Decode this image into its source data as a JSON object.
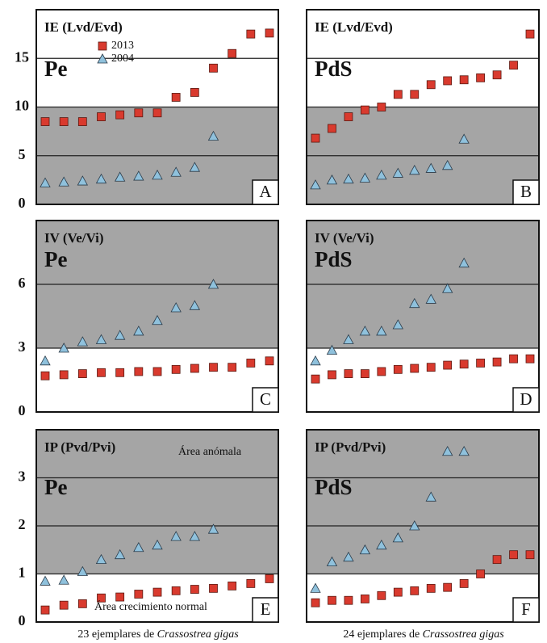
{
  "chart_data": [
    {
      "type": "scatter",
      "title": "IE (Lvd/Evd)",
      "subtitle": "Pe",
      "panel_label": "A",
      "ylim": [
        0,
        20
      ],
      "yticks": [
        0,
        5,
        10,
        15
      ],
      "tick_labels": true,
      "shaded_range": [
        0,
        10
      ],
      "series": [
        {
          "name": "2013",
          "marker": "square",
          "color": "#d93a2e",
          "values": [
            8.5,
            8.5,
            8.5,
            9,
            9.2,
            9.4,
            9.4,
            11,
            11.5,
            14,
            15.5,
            17.5,
            17.6
          ]
        },
        {
          "name": "2004",
          "marker": "triangle",
          "color": "#8fc1dc",
          "values": [
            2.2,
            2.3,
            2.4,
            2.6,
            2.8,
            2.9,
            3.0,
            3.3,
            3.8,
            7
          ]
        }
      ]
    },
    {
      "type": "scatter",
      "title": "IE (Lvd/Evd)",
      "subtitle": "PdS",
      "panel_label": "B",
      "ylim": [
        0,
        20
      ],
      "yticks": [
        0,
        5,
        10,
        15
      ],
      "tick_labels": false,
      "shaded_range": [
        0,
        10
      ],
      "series": [
        {
          "marker": "square",
          "color": "#d93a2e",
          "values": [
            6.8,
            7.8,
            9,
            9.7,
            10,
            11.3,
            11.3,
            12.3,
            12.7,
            12.8,
            13,
            13.3,
            14.3,
            17.5
          ]
        },
        {
          "marker": "triangle",
          "color": "#8fc1dc",
          "values": [
            2,
            2.5,
            2.6,
            2.7,
            3,
            3.2,
            3.5,
            3.7,
            4,
            6.7
          ]
        }
      ]
    },
    {
      "type": "scatter",
      "title": "IV (Ve/Vi)",
      "subtitle": "Pe",
      "panel_label": "C",
      "ylim": [
        0,
        9
      ],
      "yticks": [
        0,
        3,
        6
      ],
      "tick_labels": true,
      "shaded_range": [
        3,
        9
      ],
      "series": [
        {
          "marker": "square",
          "color": "#d93a2e",
          "values": [
            1.7,
            1.75,
            1.8,
            1.85,
            1.85,
            1.9,
            1.9,
            2.0,
            2.05,
            2.1,
            2.1,
            2.3,
            2.4
          ]
        },
        {
          "marker": "triangle",
          "color": "#8fc1dc",
          "values": [
            2.4,
            3,
            3.3,
            3.4,
            3.6,
            3.8,
            4.3,
            4.9,
            5,
            6
          ]
        }
      ]
    },
    {
      "type": "scatter",
      "title": "IV (Ve/Vi)",
      "subtitle": "PdS",
      "panel_label": "D",
      "ylim": [
        0,
        9
      ],
      "yticks": [
        0,
        3,
        6
      ],
      "tick_labels": false,
      "shaded_range": [
        3,
        9
      ],
      "series": [
        {
          "marker": "square",
          "color": "#d93a2e",
          "values": [
            1.55,
            1.75,
            1.8,
            1.8,
            1.9,
            2.0,
            2.05,
            2.1,
            2.2,
            2.25,
            2.3,
            2.35,
            2.5,
            2.5
          ]
        },
        {
          "marker": "triangle",
          "color": "#8fc1dc",
          "values": [
            2.4,
            2.9,
            3.4,
            3.8,
            3.8,
            4.1,
            5.1,
            5.3,
            5.8,
            7
          ]
        }
      ]
    },
    {
      "type": "scatter",
      "title": "IP (Pvd/Pvi)",
      "subtitle": "Pe",
      "panel_label": "E",
      "ylim": [
        0,
        4
      ],
      "yticks": [
        0,
        1,
        2,
        3
      ],
      "tick_labels": true,
      "shaded_range": [
        1,
        4
      ],
      "annotations": [
        "Área anómala",
        "Área crecimiento normal"
      ],
      "series": [
        {
          "marker": "square",
          "color": "#d93a2e",
          "values": [
            0.25,
            0.35,
            0.38,
            0.5,
            0.52,
            0.58,
            0.62,
            0.65,
            0.68,
            0.7,
            0.75,
            0.8,
            0.9
          ]
        },
        {
          "marker": "triangle",
          "color": "#8fc1dc",
          "values": [
            0.85,
            0.87,
            1.05,
            1.3,
            1.4,
            1.55,
            1.6,
            1.78,
            1.78,
            1.93
          ]
        }
      ]
    },
    {
      "type": "scatter",
      "title": "IP (Pvd/Pvi)",
      "subtitle": "PdS",
      "panel_label": "F",
      "ylim": [
        0,
        4
      ],
      "yticks": [
        0,
        1,
        2,
        3
      ],
      "tick_labels": false,
      "shaded_range": [
        1,
        4
      ],
      "series": [
        {
          "marker": "square",
          "color": "#d93a2e",
          "values": [
            0.4,
            0.45,
            0.45,
            0.48,
            0.55,
            0.62,
            0.65,
            0.7,
            0.72,
            0.8,
            1.0,
            1.3,
            1.4,
            1.4
          ]
        },
        {
          "marker": "triangle",
          "color": "#8fc1dc",
          "values": [
            0.7,
            1.25,
            1.35,
            1.5,
            1.6,
            1.75,
            2.0,
            2.6,
            3.55,
            3.55
          ]
        }
      ]
    }
  ],
  "captions": [
    {
      "text": "23 ejemplares de ",
      "italic": "Crassostrea gigas"
    },
    {
      "text": "24  ejemplares de ",
      "italic": "Crassostrea gigas"
    }
  ]
}
